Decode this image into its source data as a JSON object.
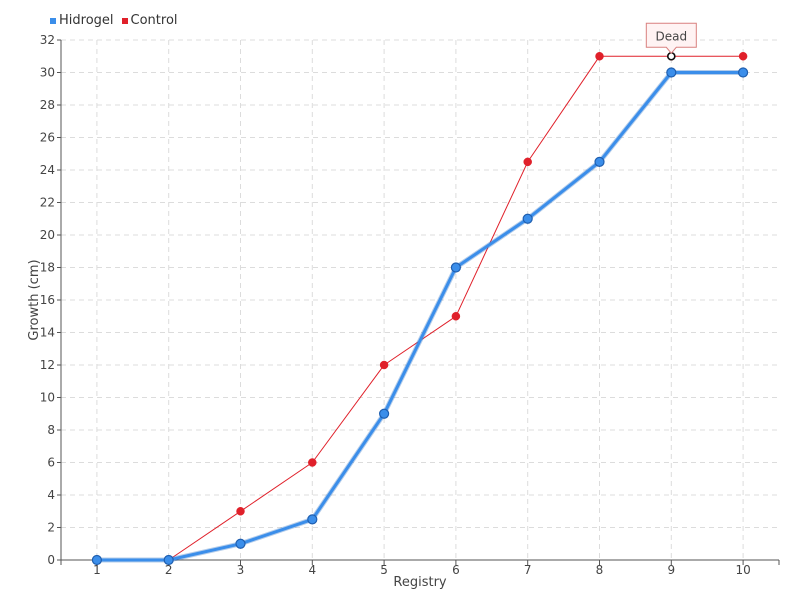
{
  "chart_data": {
    "type": "line",
    "title": "",
    "xlabel": "Registry",
    "ylabel": "Growth (cm)",
    "categories": [
      "1",
      "2",
      "3",
      "4",
      "5",
      "6",
      "7",
      "8",
      "9",
      "10"
    ],
    "x": [
      1,
      2,
      3,
      4,
      5,
      6,
      7,
      8,
      9,
      10
    ],
    "xlim": [
      0.5,
      10.5
    ],
    "ylim": [
      0,
      32
    ],
    "y_ticks": [
      0,
      2,
      4,
      6,
      8,
      10,
      12,
      14,
      16,
      18,
      20,
      22,
      24,
      26,
      28,
      30,
      32
    ],
    "grid": true,
    "legend_position": "top-left",
    "series": [
      {
        "name": "Hidrogel",
        "color": "#3b8eea",
        "values": [
          0,
          0,
          1,
          2.5,
          9,
          18,
          21,
          24.5,
          30,
          30
        ]
      },
      {
        "name": "Control",
        "color": "#e0202a",
        "values": [
          0,
          0,
          3,
          6,
          12,
          15,
          24.5,
          31,
          31,
          31
        ]
      }
    ],
    "annotations": [
      {
        "series": "Control",
        "x": 9,
        "y": 31,
        "text": "Dead"
      }
    ]
  }
}
